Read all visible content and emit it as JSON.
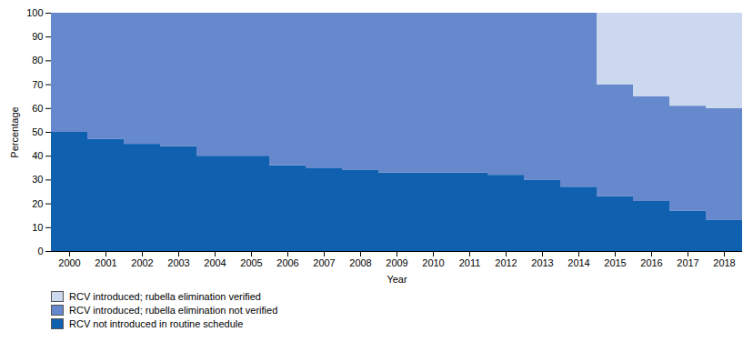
{
  "chart_data": {
    "type": "bar",
    "stacked": true,
    "xlabel": "Year",
    "ylabel": "Percentage",
    "categories": [
      "2000",
      "2001",
      "2002",
      "2003",
      "2004",
      "2005",
      "2006",
      "2007",
      "2008",
      "2009",
      "2010",
      "2011",
      "2012",
      "2013",
      "2014",
      "2015",
      "2016",
      "2017",
      "2018"
    ],
    "series": [
      {
        "name": "RCV not introduced in routine schedule",
        "color": "#1060b0",
        "values": [
          50,
          47,
          45,
          44,
          40,
          40,
          36,
          35,
          34,
          33,
          33,
          33,
          32,
          30,
          27,
          23,
          21,
          17,
          13
        ]
      },
      {
        "name": "RCV introduced; rubella elimination not verified",
        "color": "#6688cc",
        "values": [
          50,
          53,
          55,
          56,
          60,
          60,
          64,
          65,
          66,
          67,
          67,
          67,
          68,
          70,
          73,
          47,
          44,
          44,
          47
        ]
      },
      {
        "name": "RCV introduced; rubella elimination verified",
        "color": "#ccd8ee",
        "values": [
          0,
          0,
          0,
          0,
          0,
          0,
          0,
          0,
          0,
          0,
          0,
          0,
          0,
          0,
          0,
          30,
          35,
          39,
          40
        ]
      }
    ],
    "ylim": [
      0,
      100
    ],
    "yticks": [
      0,
      10,
      20,
      30,
      40,
      50,
      60,
      70,
      80,
      90,
      100
    ],
    "grid": false,
    "legend": "lower left"
  }
}
